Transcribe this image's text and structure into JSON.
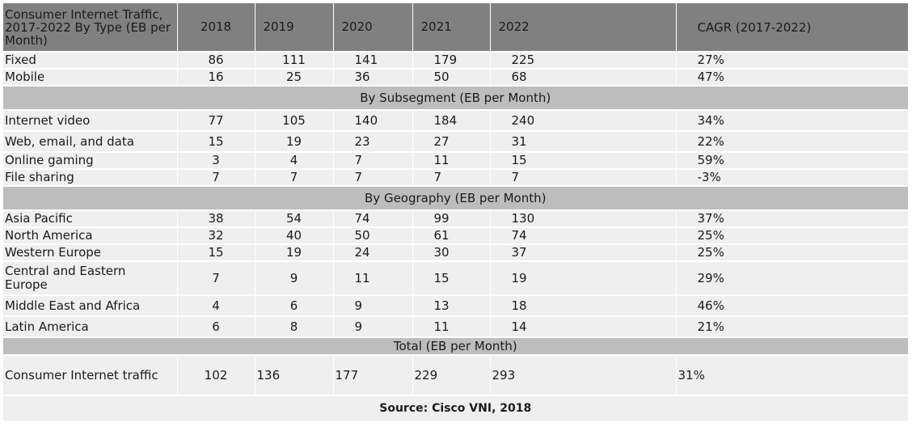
{
  "chart_data": {
    "type": "table",
    "header": {
      "label": "Consumer Internet Traffic, 2017-2022 By Type (EB per Month)",
      "years": [
        "2018",
        "2019",
        "2020",
        "2021",
        "2022"
      ],
      "cagr": "CAGR (2017-2022)"
    },
    "sections": [
      {
        "title": "",
        "rows": [
          {
            "label": "Fixed",
            "values": [
              "86",
              "111",
              "141",
              "179",
              "225"
            ],
            "cagr": "27%"
          },
          {
            "label": "Mobile",
            "values": [
              "16",
              "25",
              "36",
              "50",
              "68"
            ],
            "cagr": "47%"
          }
        ]
      },
      {
        "title": "By Subsegment (EB per Month)",
        "rows": [
          {
            "label": "Internet video",
            "values": [
              "77",
              "105",
              "140",
              "184",
              "240"
            ],
            "cagr": "34%"
          },
          {
            "label": "Web, email, and data",
            "values": [
              "15",
              "19",
              "23",
              "27",
              "31"
            ],
            "cagr": "22%"
          },
          {
            "label": "Online gaming",
            "values": [
              "3",
              "4",
              "7",
              "11",
              "15"
            ],
            "cagr": "59%"
          },
          {
            "label": "File sharing",
            "values": [
              "7",
              "7",
              "7",
              "7",
              "7"
            ],
            "cagr": "-3%"
          }
        ]
      },
      {
        "title": "By Geography (EB per Month)",
        "rows": [
          {
            "label": "Asia Pacific",
            "values": [
              "38",
              "54",
              "74",
              "99",
              "130"
            ],
            "cagr": "37%"
          },
          {
            "label": "North America",
            "values": [
              "32",
              "40",
              "50",
              "61",
              "74"
            ],
            "cagr": "25%"
          },
          {
            "label": "Western Europe",
            "values": [
              "15",
              "19",
              "24",
              "30",
              "37"
            ],
            "cagr": "25%"
          },
          {
            "label": "Central and Eastern Europe",
            "values": [
              "7",
              "9",
              "11",
              "15",
              "19"
            ],
            "cagr": "29%"
          },
          {
            "label": "Middle East and Africa",
            "values": [
              "4",
              "6",
              "9",
              "13",
              "18"
            ],
            "cagr": "46%"
          },
          {
            "label": "Latin America",
            "values": [
              "6",
              "8",
              "9",
              "11",
              "14"
            ],
            "cagr": "21%"
          }
        ]
      },
      {
        "title": "Total (EB per Month)",
        "rows": [
          {
            "label": "Consumer Internet traffic",
            "values": [
              "102",
              "136",
              "177",
              "229",
              "293"
            ],
            "cagr": "31%"
          }
        ]
      }
    ],
    "source": "Source: Cisco VNI, 2018"
  },
  "colors": {
    "header_bg": "#808080",
    "section_bg": "#bdbdbd",
    "row_bg": "#efefef"
  }
}
